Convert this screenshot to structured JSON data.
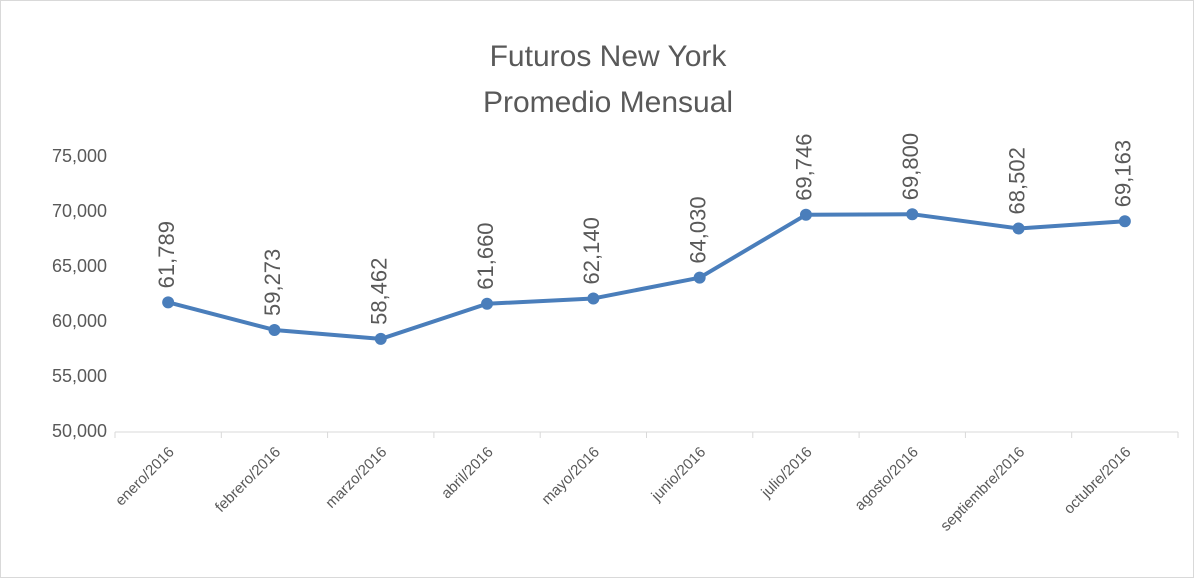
{
  "chart_data": {
    "type": "line",
    "title": "Futuros New York",
    "subtitle": "Promedio Mensual",
    "categories": [
      "enero/2016",
      "febrero/2016",
      "marzo/2016",
      "abril/2016",
      "mayo/2016",
      "junio/2016",
      "julio/2016",
      "agosto/2016",
      "septiembre/2016",
      "octubre/2016"
    ],
    "series": [
      {
        "name": "Promedio Mensual",
        "color": "#4a7ebb",
        "values": [
          61789,
          59273,
          58462,
          61660,
          62140,
          64030,
          69746,
          69800,
          68502,
          69163
        ],
        "value_labels": [
          "61,789",
          "59,273",
          "58,462",
          "61,660",
          "62,140",
          "64,030",
          "69,746",
          "69,800",
          "68,502",
          "69,163"
        ]
      }
    ],
    "ylim": [
      50000,
      75000
    ],
    "yticks": [
      {
        "value": 50000,
        "label": "50,000"
      },
      {
        "value": 55000,
        "label": "55,000"
      },
      {
        "value": 60000,
        "label": "60,000"
      },
      {
        "value": 65000,
        "label": "65,000"
      },
      {
        "value": 70000,
        "label": "70,000"
      },
      {
        "value": 75000,
        "label": "75,000"
      }
    ],
    "grid": false
  }
}
